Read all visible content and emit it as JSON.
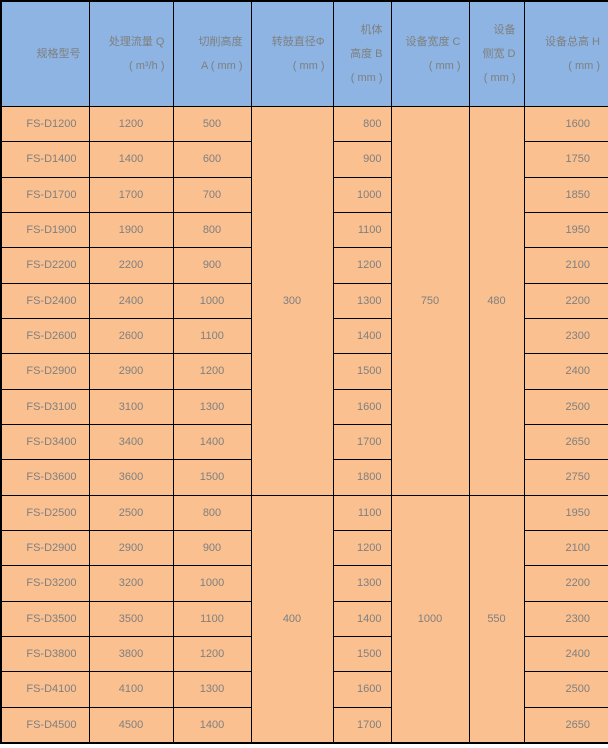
{
  "colors": {
    "header_background": "#8db4e2",
    "body_background": "#fac090",
    "border": "#000000",
    "text": "#7f7f7f"
  },
  "chart_data": {
    "type": "table",
    "headers": [
      {
        "key": "model",
        "lines": [
          "规格型号"
        ]
      },
      {
        "key": "flow_q",
        "lines": [
          "处理流量 Q",
          "( m³/h )"
        ]
      },
      {
        "key": "cut_height_a",
        "lines": [
          "切削高度",
          "A ( mm )"
        ]
      },
      {
        "key": "drum_diameter",
        "lines": [
          "转鼓直径Φ",
          "( mm )"
        ]
      },
      {
        "key": "body_height_b",
        "lines": [
          "机体",
          "高度 B",
          "( mm )"
        ]
      },
      {
        "key": "device_width_c",
        "lines": [
          "设备宽度 C",
          "( mm )"
        ]
      },
      {
        "key": "side_width_d",
        "lines": [
          "设备",
          "侧宽 D",
          "( mm )"
        ]
      },
      {
        "key": "total_height_h",
        "lines": [
          "设备总高 H",
          "( mm )"
        ]
      }
    ],
    "groups": [
      {
        "drum_diameter": "300",
        "device_width_c": "750",
        "side_width_d": "480",
        "rows": [
          {
            "model": "FS-D1200",
            "flow_q": "1200",
            "cut_height_a": "500",
            "body_height_b": "800",
            "total_height_h": "1600"
          },
          {
            "model": "FS-D1400",
            "flow_q": "1400",
            "cut_height_a": "600",
            "body_height_b": "900",
            "total_height_h": "1750"
          },
          {
            "model": "FS-D1700",
            "flow_q": "1700",
            "cut_height_a": "700",
            "body_height_b": "1000",
            "total_height_h": "1850"
          },
          {
            "model": "FS-D1900",
            "flow_q": "1900",
            "cut_height_a": "800",
            "body_height_b": "1100",
            "total_height_h": "1950"
          },
          {
            "model": "FS-D2200",
            "flow_q": "2200",
            "cut_height_a": "900",
            "body_height_b": "1200",
            "total_height_h": "2100"
          },
          {
            "model": "FS-D2400",
            "flow_q": "2400",
            "cut_height_a": "1000",
            "body_height_b": "1300",
            "total_height_h": "2200"
          },
          {
            "model": "FS-D2600",
            "flow_q": "2600",
            "cut_height_a": "1100",
            "body_height_b": "1400",
            "total_height_h": "2300"
          },
          {
            "model": "FS-D2900",
            "flow_q": "2900",
            "cut_height_a": "1200",
            "body_height_b": "1500",
            "total_height_h": "2400"
          },
          {
            "model": "FS-D3100",
            "flow_q": "3100",
            "cut_height_a": "1300",
            "body_height_b": "1600",
            "total_height_h": "2500"
          },
          {
            "model": "FS-D3400",
            "flow_q": "3400",
            "cut_height_a": "1400",
            "body_height_b": "1700",
            "total_height_h": "2650"
          },
          {
            "model": "FS-D3600",
            "flow_q": "3600",
            "cut_height_a": "1500",
            "body_height_b": "1800",
            "total_height_h": "2750"
          }
        ]
      },
      {
        "drum_diameter": "400",
        "device_width_c": "1000",
        "side_width_d": "550",
        "rows": [
          {
            "model": "FS-D2500",
            "flow_q": "2500",
            "cut_height_a": "800",
            "body_height_b": "1100",
            "total_height_h": "1950"
          },
          {
            "model": "FS-D2900",
            "flow_q": "2900",
            "cut_height_a": "900",
            "body_height_b": "1200",
            "total_height_h": "2100"
          },
          {
            "model": "FS-D3200",
            "flow_q": "3200",
            "cut_height_a": "1000",
            "body_height_b": "1300",
            "total_height_h": "2200"
          },
          {
            "model": "FS-D3500",
            "flow_q": "3500",
            "cut_height_a": "1100",
            "body_height_b": "1400",
            "total_height_h": "2300"
          },
          {
            "model": "FS-D3800",
            "flow_q": "3800",
            "cut_height_a": "1200",
            "body_height_b": "1500",
            "total_height_h": "2400"
          },
          {
            "model": "FS-D4100",
            "flow_q": "4100",
            "cut_height_a": "1300",
            "body_height_b": "1600",
            "total_height_h": "2500"
          },
          {
            "model": "FS-D4500",
            "flow_q": "4500",
            "cut_height_a": "1400",
            "body_height_b": "1700",
            "total_height_h": "2650"
          }
        ]
      }
    ]
  }
}
